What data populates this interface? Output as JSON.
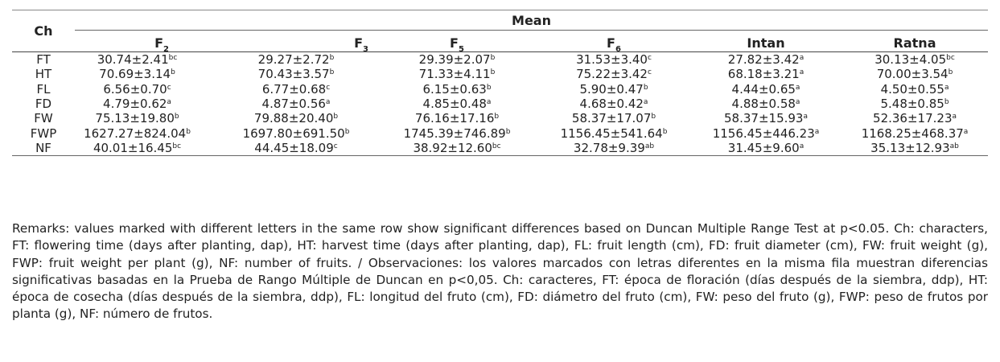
{
  "table": {
    "row_header": "Ch",
    "group_header": "Mean",
    "columns": [
      {
        "base": "F",
        "sub": "2"
      },
      {
        "base": "F",
        "sub": "3"
      },
      {
        "base": "F",
        "sub": "5"
      },
      {
        "base": "F",
        "sub": "6"
      },
      {
        "base": "Intan",
        "sub": ""
      },
      {
        "base": "Ratna",
        "sub": ""
      }
    ],
    "rows": [
      {
        "ch": "FT",
        "cells": [
          [
            "30.74±2.41",
            "bc"
          ],
          [
            "29.27±2.72",
            "b"
          ],
          [
            "29.39±2.07",
            "b"
          ],
          [
            "31.53±3.40",
            "c"
          ],
          [
            "27.82±3.42",
            "a"
          ],
          [
            "30.13±4.05",
            "bc"
          ]
        ]
      },
      {
        "ch": "HT",
        "cells": [
          [
            "70.69±3.14",
            "b"
          ],
          [
            "70.43±3.57",
            "b"
          ],
          [
            "71.33±4.11",
            "b"
          ],
          [
            "75.22±3.42",
            "c"
          ],
          [
            "68.18±3.21",
            "a"
          ],
          [
            "70.00±3.54",
            "b"
          ]
        ]
      },
      {
        "ch": "FL",
        "cells": [
          [
            "6.56±0.70",
            "c"
          ],
          [
            "6.77±0.68",
            "c"
          ],
          [
            "6.15±0.63",
            "b"
          ],
          [
            "5.90±0.47",
            "b"
          ],
          [
            "4.44±0.65",
            "a"
          ],
          [
            "4.50±0.55",
            "a"
          ]
        ]
      },
      {
        "ch": "FD",
        "cells": [
          [
            "4.79±0.62",
            "a"
          ],
          [
            "4.87±0.56",
            "a"
          ],
          [
            "4.85±0.48",
            "a"
          ],
          [
            "4.68±0.42",
            "a"
          ],
          [
            "4.88±0.58",
            "a"
          ],
          [
            "5.48±0.85",
            "b"
          ]
        ]
      },
      {
        "ch": "FW",
        "cells": [
          [
            "75.13±19.80",
            "b"
          ],
          [
            "79.88±20.40",
            "b"
          ],
          [
            "76.16±17.16",
            "b"
          ],
          [
            "58.37±17.07",
            "b"
          ],
          [
            "58.37±15.93",
            "a"
          ],
          [
            "52.36±17.23",
            "a"
          ]
        ]
      },
      {
        "ch": "FWP",
        "cells": [
          [
            "1627.27±824.04",
            "b"
          ],
          [
            "1697.80±691.50",
            "b"
          ],
          [
            "1745.39±746.89",
            "b"
          ],
          [
            "1156.45±541.64",
            "b"
          ],
          [
            "1156.45±446.23",
            "a"
          ],
          [
            "1168.25±468.37",
            "a"
          ]
        ]
      },
      {
        "ch": "NF",
        "cells": [
          [
            "40.01±16.45",
            "bc"
          ],
          [
            "44.45±18.09",
            "c"
          ],
          [
            "38.92±12.60",
            "bc"
          ],
          [
            "32.78±9.39",
            "ab"
          ],
          [
            "31.45±9.60",
            "a"
          ],
          [
            "35.13±12.93",
            "ab"
          ]
        ]
      }
    ]
  },
  "remarks": "Remarks: values marked with different letters in the same row show significant differences based on Duncan Multiple Range Test at p<0.05. Ch: characters, FT: flowering time (days after planting, dap), HT: harvest time (days after planting, dap), FL: fruit length (cm), FD: fruit diameter (cm), FW: fruit weight (g), FWP: fruit weight per plant (g), NF: number of fruits. / Observaciones: los valores marcados con letras diferentes en la misma fila muestran diferencias significativas basadas en la Prueba de Rango Múltiple de Duncan en p<0,05. Ch: caracteres, FT: época de floración (días después de la siembra, ddp), HT: época de cosecha (días después de la siembra, ddp), FL: longitud del fruto (cm), FD: diámetro del fruto (cm), FW: peso del fruto (g), FWP: peso de frutos por planta (g), NF: número de frutos."
}
